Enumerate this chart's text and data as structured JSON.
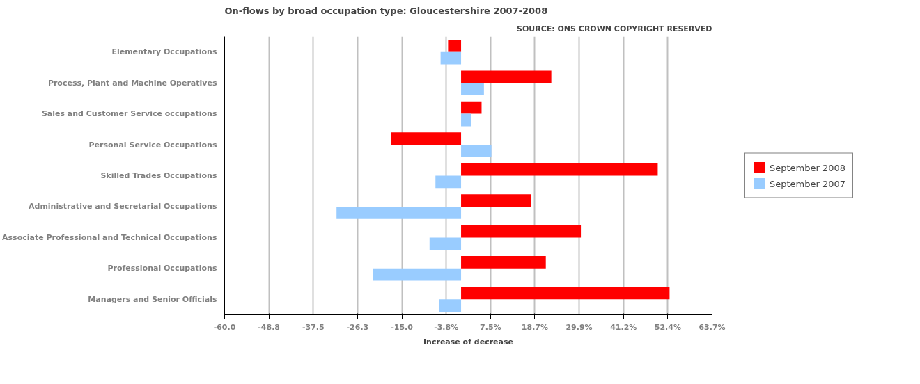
{
  "chart_data": {
    "type": "bar",
    "orientation": "horizontal",
    "title": "On-flows by broad occupation type: Gloucestershire 2007-2008",
    "annotations": [
      "SOURCE: ONS CROWN COPYRIGHT RESERVED"
    ],
    "xlabel": "Increase of decrease",
    "categories": [
      "Elementary Occupations",
      "Process, Plant and Machine Operatives",
      "Sales and Customer Service occupations",
      "Personal Service Occupations",
      "Skilled Trades Occupations",
      "Administrative and Secretarial Occupations",
      "Associate Professional and Technical Occupations",
      "Professional Occupations",
      "Managers and Senior Officials"
    ],
    "series": [
      {
        "name": "September 2008",
        "color": "#ff0000",
        "values": [
          -3.3,
          22.9,
          5.2,
          -17.8,
          49.9,
          17.8,
          30.4,
          21.5,
          52.9
        ]
      },
      {
        "name": "September 2007",
        "color": "#99ccff",
        "values": [
          -5.2,
          5.8,
          2.6,
          7.7,
          -6.5,
          -31.6,
          -8.0,
          -22.3,
          -5.6
        ]
      }
    ],
    "xlim": [
      -60,
      63.695
    ],
    "xticks": [
      {
        "value": -60,
        "label": "-60.0"
      },
      {
        "value": -48.755,
        "label": "-48.8"
      },
      {
        "value": -37.51,
        "label": "-37.5"
      },
      {
        "value": -26.265,
        "label": "-26.3"
      },
      {
        "value": -15.02,
        "label": "-15.0"
      },
      {
        "value": -3.775,
        "label": "-3.8%"
      },
      {
        "value": 7.47,
        "label": "7.5%"
      },
      {
        "value": 18.715,
        "label": "18.7%"
      },
      {
        "value": 29.94,
        "label": "29.9%"
      },
      {
        "value": 41.205,
        "label": "41.2%"
      },
      {
        "value": 52.45,
        "label": "52.4%"
      },
      {
        "value": 63.695,
        "label": "63.7%"
      }
    ],
    "grid": "x",
    "legend": "right"
  }
}
